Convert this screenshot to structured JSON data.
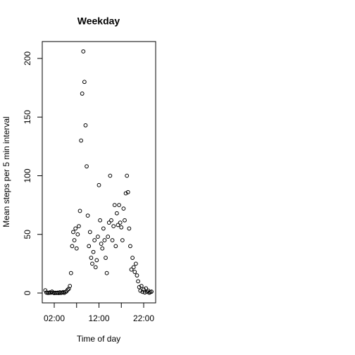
{
  "chart_data": {
    "type": "scatter",
    "title": "Weekday",
    "xlabel": "Time of day",
    "ylabel": "Mean steps per 5 min interval",
    "x": [
      0,
      0.25,
      0.5,
      0.75,
      1,
      1.25,
      1.5,
      1.75,
      2,
      2.25,
      2.5,
      2.75,
      3,
      3.25,
      3.5,
      3.75,
      4,
      4.25,
      4.5,
      4.75,
      5,
      5.25,
      5.5,
      5.75,
      6,
      6.25,
      6.5,
      6.75,
      7,
      7.25,
      7.5,
      7.75,
      8,
      8.25,
      8.5,
      8.75,
      9,
      9.25,
      9.5,
      9.75,
      10,
      10.25,
      10.5,
      10.75,
      11,
      11.25,
      11.5,
      11.75,
      12,
      12.25,
      12.5,
      12.75,
      13,
      13.25,
      13.5,
      13.75,
      14,
      14.25,
      14.5,
      14.75,
      15,
      15.25,
      15.5,
      15.75,
      16,
      16.25,
      16.5,
      16.75,
      17,
      17.25,
      17.5,
      17.75,
      18,
      18.25,
      18.5,
      18.75,
      19,
      19.25,
      19.5,
      19.75,
      20,
      20.25,
      20.5,
      20.75,
      21,
      21.25,
      21.5,
      21.75,
      22,
      22.25,
      22.5,
      22.75,
      23,
      23.25,
      23.5,
      23.75
    ],
    "values": [
      2.3,
      0.4,
      0.2,
      0.1,
      0.5,
      0.3,
      1.2,
      0.4,
      0,
      0.2,
      0.1,
      0.3,
      0,
      0.6,
      0.1,
      0.4,
      0.8,
      0.2,
      0.9,
      1.5,
      2.8,
      3.6,
      6,
      17,
      40,
      52,
      45,
      55,
      38,
      50,
      57,
      70,
      130,
      170,
      206,
      180,
      143,
      108,
      66,
      40,
      52,
      30,
      25,
      35,
      45,
      22,
      28,
      48,
      92,
      62,
      42,
      38,
      55,
      45,
      30,
      17,
      48,
      60,
      100,
      62,
      45,
      57,
      75,
      40,
      68,
      58,
      75,
      60,
      56,
      45,
      72,
      62,
      85,
      100,
      86,
      55,
      40,
      20,
      30,
      22,
      18,
      25,
      15,
      10,
      5,
      2,
      6,
      1,
      3,
      0.5,
      4,
      1,
      2,
      0.3,
      0.8,
      1.2
    ],
    "color": "#000000",
    "xlim": [
      -0.68,
      24.68
    ],
    "ylim": [
      -8.4,
      214.4
    ],
    "xticks": [
      {
        "value": 2,
        "label": "02:00"
      },
      {
        "value": 7,
        "label": null
      },
      {
        "value": 12,
        "label": "12:00"
      },
      {
        "value": 17,
        "label": null
      },
      {
        "value": 22,
        "label": "22:00"
      }
    ],
    "yticks": [
      0,
      50,
      100,
      150,
      200
    ]
  }
}
